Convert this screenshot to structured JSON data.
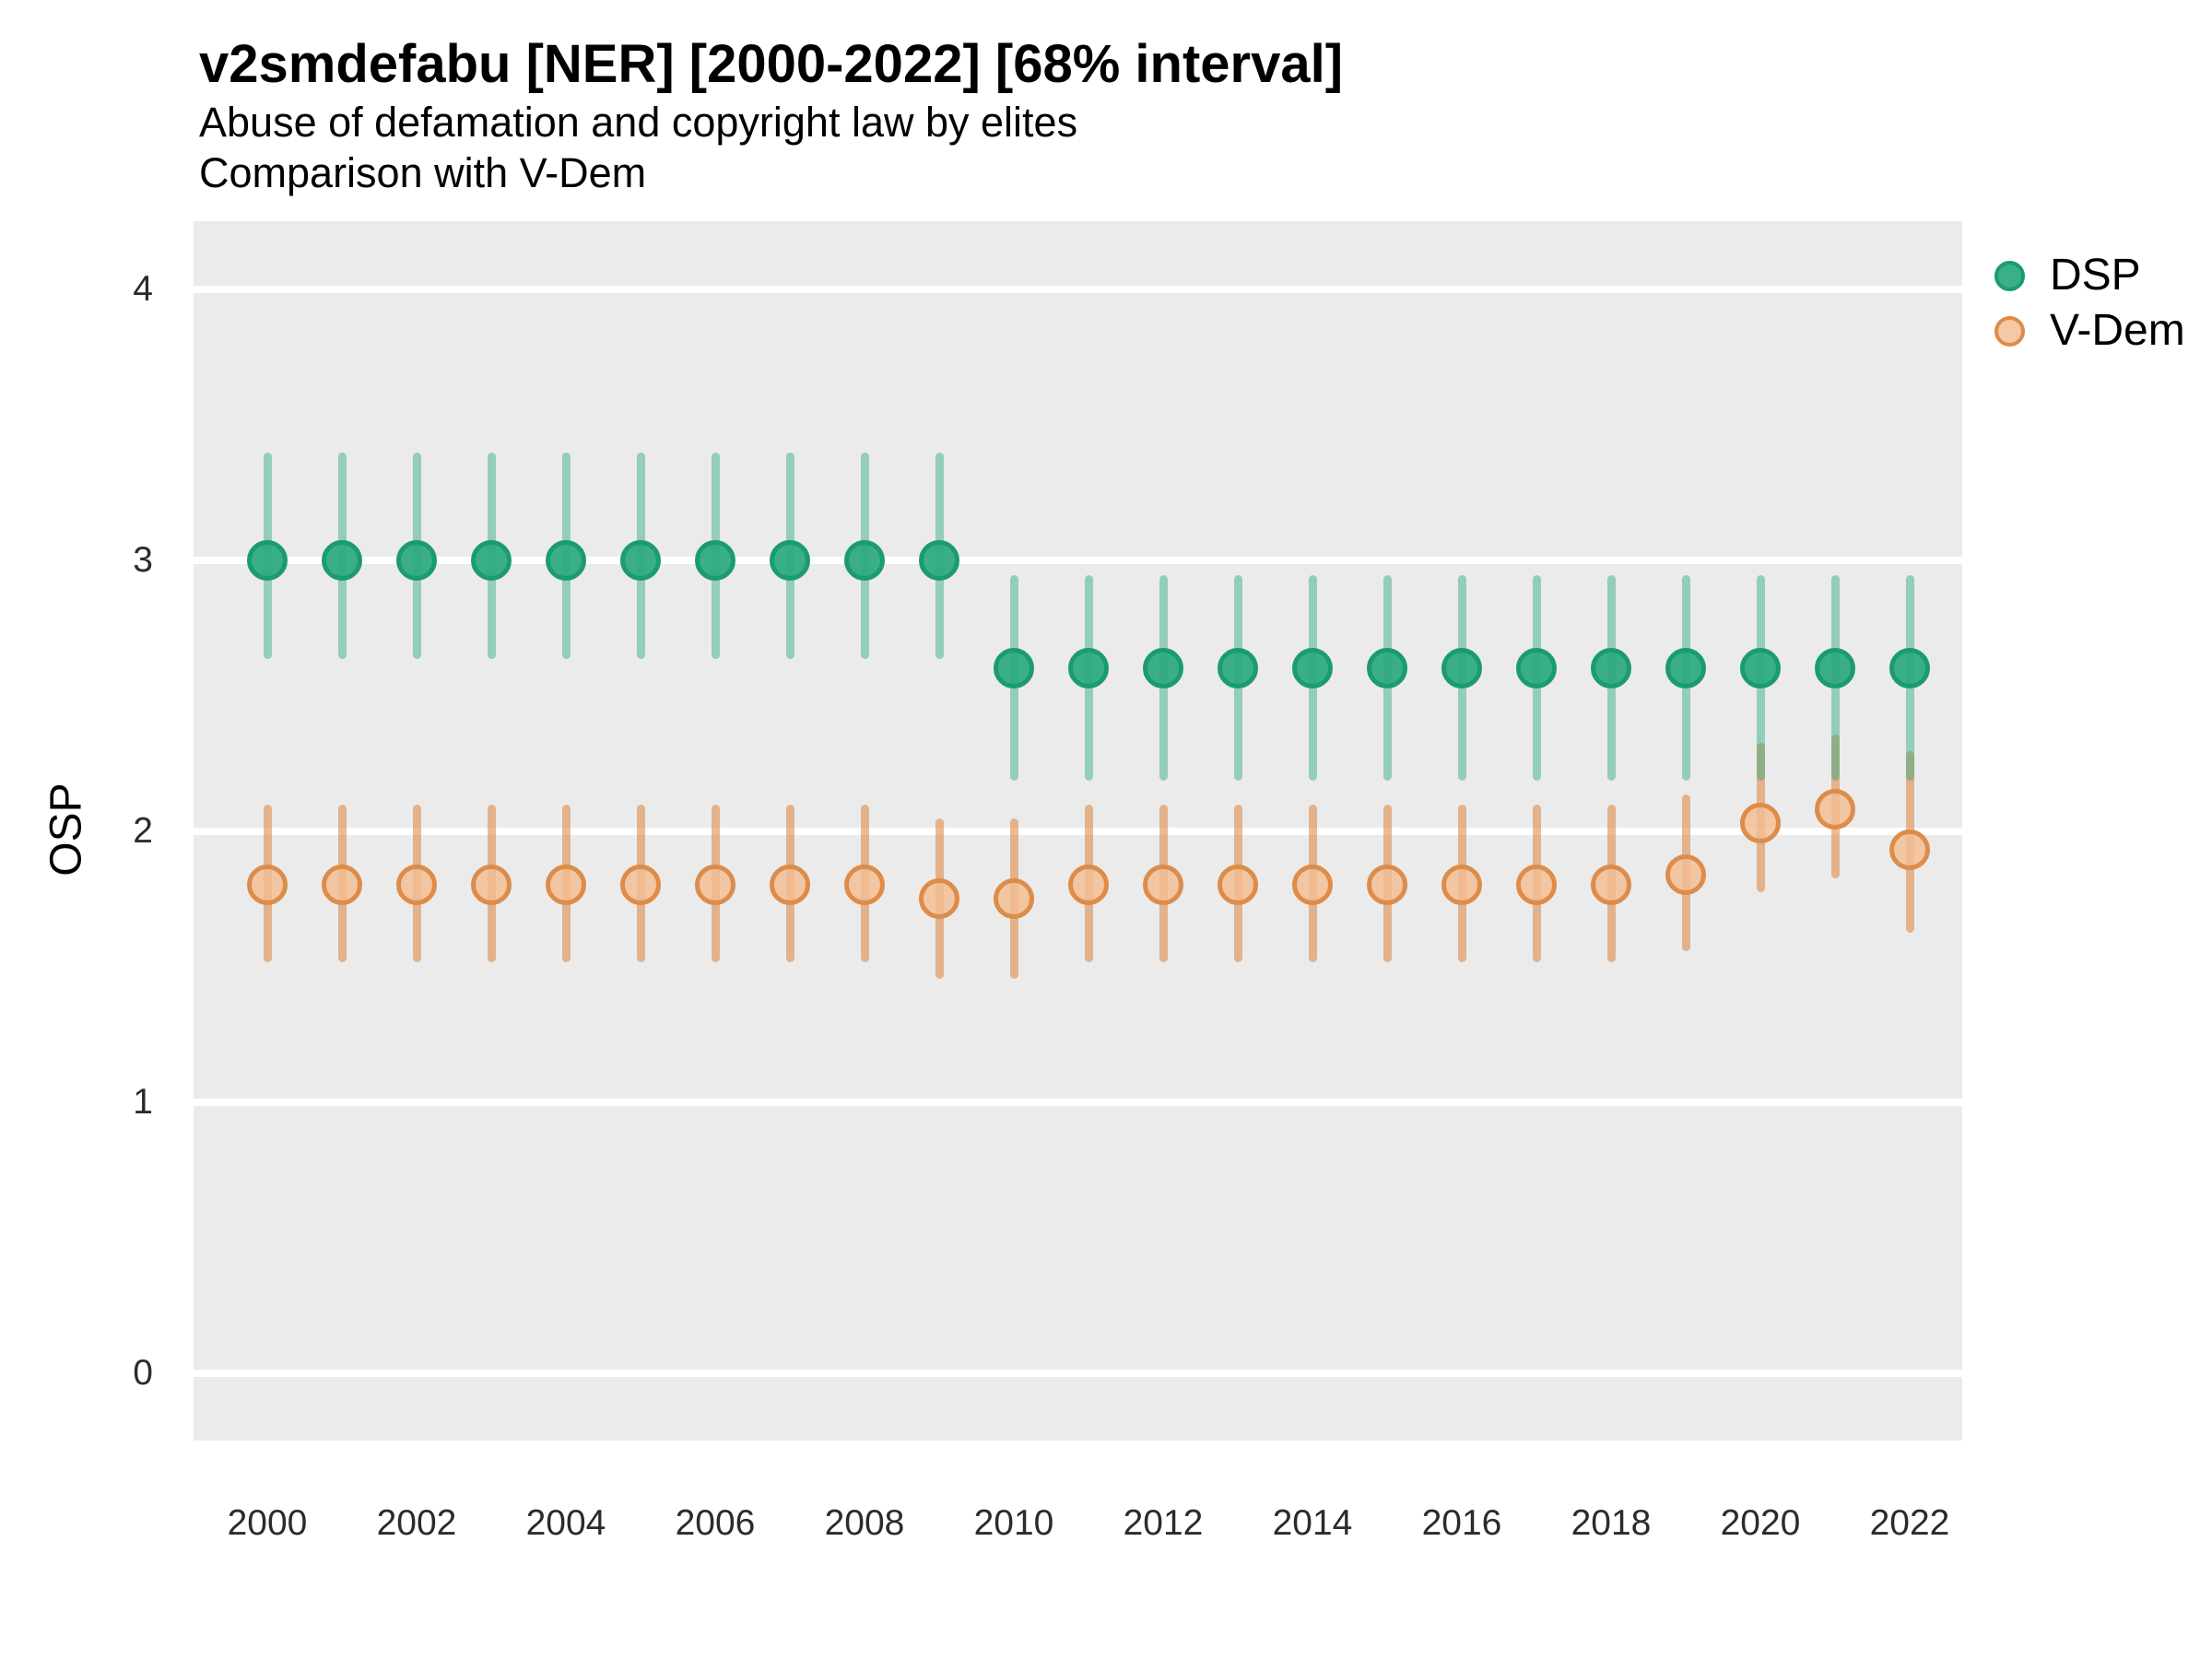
{
  "title": "v2smdefabu [NER] [2000-2022] [68% interval]",
  "subtitle_line1": "Abuse of defamation and copyright law by elites",
  "subtitle_line2": "Comparison with V-Dem",
  "y_axis": {
    "label": "OSP",
    "ticks": [
      4,
      3,
      2,
      1,
      0
    ],
    "range": [
      -0.25,
      4.25
    ]
  },
  "x_axis": {
    "tick_labels": [
      "2000",
      "2002",
      "2004",
      "2006",
      "2008",
      "2010",
      "2012",
      "2014",
      "2016",
      "2018",
      "2020",
      "2022"
    ]
  },
  "legend": {
    "items": [
      {
        "name": "DSP"
      },
      {
        "name": "V-Dem"
      }
    ],
    "position": "right"
  },
  "colors": {
    "panel_bg": "#ebebeb",
    "gridline": "#ffffff",
    "dsp_point_fill": "rgba(42,168,126,0.92)",
    "dsp_point_stroke": "#1b9b70",
    "dsp_interval": "rgba(42,168,126,0.45)",
    "vdem_point_fill": "rgba(243,189,146,0.82)",
    "vdem_point_stroke": "#dd8c4a",
    "vdem_interval": "rgba(221,140,74,0.6)",
    "text": "#000000",
    "tick_text": "#2b2b2b"
  },
  "chart_data": {
    "type": "pointrange",
    "title": "v2smdefabu [NER] [2000-2022] [68% interval]",
    "subtitle": [
      "Abuse of defamation and copyright law by elites",
      "Comparison with V-Dem"
    ],
    "interval": "68%",
    "xlabel": "",
    "ylabel": "OSP",
    "ylim": [
      -0.25,
      4.25
    ],
    "y_gridlines": [
      0,
      1,
      2,
      3,
      4
    ],
    "grid": "horizontal-major-only",
    "legend_position": "right",
    "x": [
      2000,
      2001,
      2002,
      2003,
      2004,
      2005,
      2006,
      2007,
      2008,
      2009,
      2010,
      2011,
      2012,
      2013,
      2014,
      2015,
      2016,
      2017,
      2018,
      2019,
      2020,
      2021,
      2022
    ],
    "series": [
      {
        "name": "DSP",
        "point_fill": "rgba(42,168,126,0.92)",
        "point_stroke": "#1b9b70",
        "interval_color": "rgba(42,168,126,0.45)",
        "values": [
          3.0,
          3.0,
          3.0,
          3.0,
          3.0,
          3.0,
          3.0,
          3.0,
          3.0,
          3.0,
          2.6,
          2.6,
          2.6,
          2.6,
          2.6,
          2.6,
          2.6,
          2.6,
          2.6,
          2.6,
          2.6,
          2.6,
          2.6
        ],
        "lower": [
          2.65,
          2.65,
          2.65,
          2.65,
          2.65,
          2.65,
          2.65,
          2.65,
          2.65,
          2.65,
          2.2,
          2.2,
          2.2,
          2.2,
          2.2,
          2.2,
          2.2,
          2.2,
          2.2,
          2.2,
          2.2,
          2.2,
          2.2
        ],
        "upper": [
          3.38,
          3.38,
          3.38,
          3.38,
          3.38,
          3.38,
          3.38,
          3.38,
          3.38,
          3.38,
          2.93,
          2.93,
          2.93,
          2.93,
          2.93,
          2.93,
          2.93,
          2.93,
          2.93,
          2.93,
          2.93,
          2.93,
          2.93
        ]
      },
      {
        "name": "V-Dem",
        "point_fill": "rgba(243,189,146,0.82)",
        "point_stroke": "#dd8c4a",
        "interval_color": "rgba(221,140,74,0.6)",
        "values": [
          1.8,
          1.8,
          1.8,
          1.8,
          1.8,
          1.8,
          1.8,
          1.8,
          1.8,
          1.75,
          1.75,
          1.8,
          1.8,
          1.8,
          1.8,
          1.8,
          1.8,
          1.8,
          1.8,
          1.84,
          2.03,
          2.08,
          1.93
        ],
        "lower": [
          1.53,
          1.53,
          1.53,
          1.53,
          1.53,
          1.53,
          1.53,
          1.53,
          1.53,
          1.47,
          1.47,
          1.53,
          1.53,
          1.53,
          1.53,
          1.53,
          1.53,
          1.53,
          1.53,
          1.57,
          1.79,
          1.84,
          1.64
        ],
        "upper": [
          2.08,
          2.08,
          2.08,
          2.08,
          2.08,
          2.08,
          2.08,
          2.08,
          2.08,
          2.03,
          2.03,
          2.08,
          2.08,
          2.08,
          2.08,
          2.08,
          2.08,
          2.08,
          2.08,
          2.12,
          2.31,
          2.34,
          2.28
        ]
      }
    ]
  }
}
